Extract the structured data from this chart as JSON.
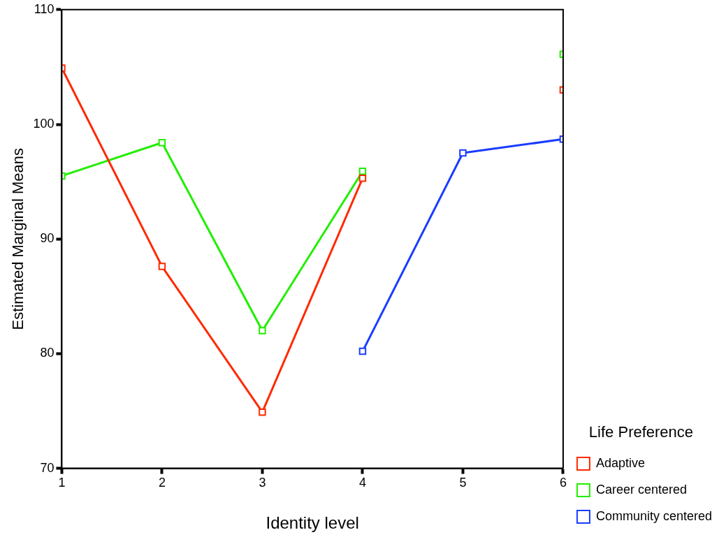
{
  "chart_data": {
    "type": "line",
    "xlabel": "Identity level",
    "ylabel": "Estimated Marginal Means",
    "legend_title": "Life Preference",
    "x": [
      1,
      2,
      3,
      4,
      5,
      6
    ],
    "series": [
      {
        "name": "Adaptive",
        "color": "#ff2a00",
        "values": [
          104.9,
          87.6,
          74.9,
          95.3,
          null,
          103.0
        ]
      },
      {
        "name": "Career centered",
        "color": "#22ee00",
        "values": [
          95.5,
          98.4,
          82.0,
          95.9,
          null,
          106.1
        ]
      },
      {
        "name": "Community centered",
        "color": "#1a3cff",
        "values": [
          null,
          null,
          null,
          80.2,
          97.5,
          98.7
        ]
      }
    ],
    "xlim": [
      1,
      6
    ],
    "xticks": [
      1,
      2,
      3,
      4,
      5,
      6
    ],
    "ylim": [
      70,
      110
    ],
    "yticks": [
      70,
      80,
      90,
      100,
      110
    ],
    "grid": false,
    "legend": "right",
    "marker": "square",
    "line_style": "solid"
  }
}
